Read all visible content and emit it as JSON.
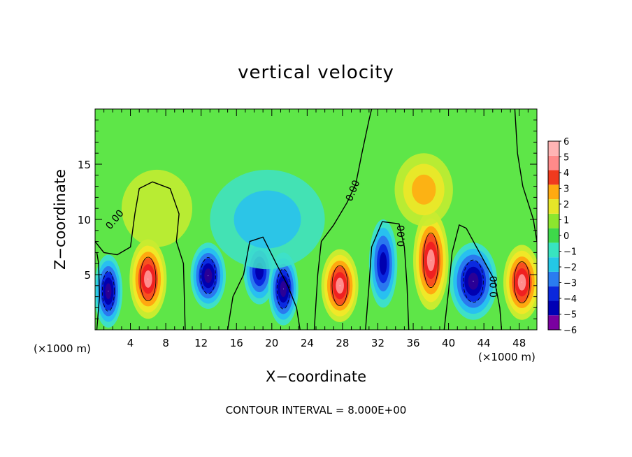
{
  "chart_data": {
    "type": "heatmap",
    "title": "vertical velocity",
    "xlabel": "X−coordinate",
    "ylabel": "Z−coordinate",
    "x_unit_left": "(×1000 m)",
    "x_unit_right": "(×1000 m)",
    "xlim": [
      0,
      50
    ],
    "ylim": [
      0,
      20
    ],
    "x_ticks": [
      4,
      8,
      12,
      16,
      20,
      24,
      28,
      32,
      36,
      40,
      44,
      48
    ],
    "x_tick_labels": [
      "4",
      "8",
      "12",
      "16",
      "20",
      "24",
      "28",
      "32",
      "36",
      "40",
      "44",
      "48"
    ],
    "y_ticks": [
      5,
      10,
      15
    ],
    "y_tick_labels": [
      "5",
      "10",
      "15"
    ],
    "colorbar": {
      "min": -6,
      "max": 6,
      "labels": [
        "6",
        "5",
        "4",
        "3",
        "2",
        "1",
        "0",
        "−1",
        "−2",
        "−3",
        "−4",
        "−5",
        "−6"
      ],
      "colors": [
        "#7a00a0",
        "#0000b4",
        "#0a28dc",
        "#2a7cf0",
        "#24c8e6",
        "#38e4c0",
        "#3ed84a",
        "#8ce62e",
        "#e6e628",
        "#ffaa10",
        "#f03a1e",
        "#ff8a8a",
        "#ffb4b4"
      ]
    },
    "contour_label": "0.00",
    "contour_interval_text": "CONTOUR INTERVAL = 8.000E+00",
    "cells": [
      {
        "x": 1.5,
        "z": 3.5,
        "rx": 1.6,
        "rz": 3.3,
        "w": -6
      },
      {
        "x": 6.0,
        "z": 4.6,
        "rx": 2.1,
        "rz": 3.6,
        "w": 6
      },
      {
        "x": 12.8,
        "z": 4.9,
        "rx": 2.0,
        "rz": 3.0,
        "w": -6
      },
      {
        "x": 18.6,
        "z": 5.3,
        "rx": 1.8,
        "rz": 3.0,
        "w": -5
      },
      {
        "x": 21.3,
        "z": 3.7,
        "rx": 1.7,
        "rz": 3.3,
        "w": -6
      },
      {
        "x": 27.7,
        "z": 4.0,
        "rx": 2.1,
        "rz": 3.3,
        "w": 6
      },
      {
        "x": 32.6,
        "z": 6.0,
        "rx": 1.6,
        "rz": 4.0,
        "w": -5
      },
      {
        "x": 38.0,
        "z": 6.3,
        "rx": 2.0,
        "rz": 4.5,
        "w": 6
      },
      {
        "x": 37.2,
        "z": 12.7,
        "rx": 3.3,
        "rz": 3.3,
        "w": 2.5
      },
      {
        "x": 42.8,
        "z": 4.4,
        "rx": 2.7,
        "rz": 3.5,
        "w": -6
      },
      {
        "x": 48.3,
        "z": 4.3,
        "rx": 2.1,
        "rz": 3.4,
        "w": 6
      },
      {
        "x": 19.5,
        "z": 10.0,
        "rx": 6.5,
        "rz": 4.5,
        "w": -1.8
      },
      {
        "x": 7.0,
        "z": 11.0,
        "rx": 4.0,
        "rz": 3.5,
        "w": 0.9
      }
    ]
  }
}
